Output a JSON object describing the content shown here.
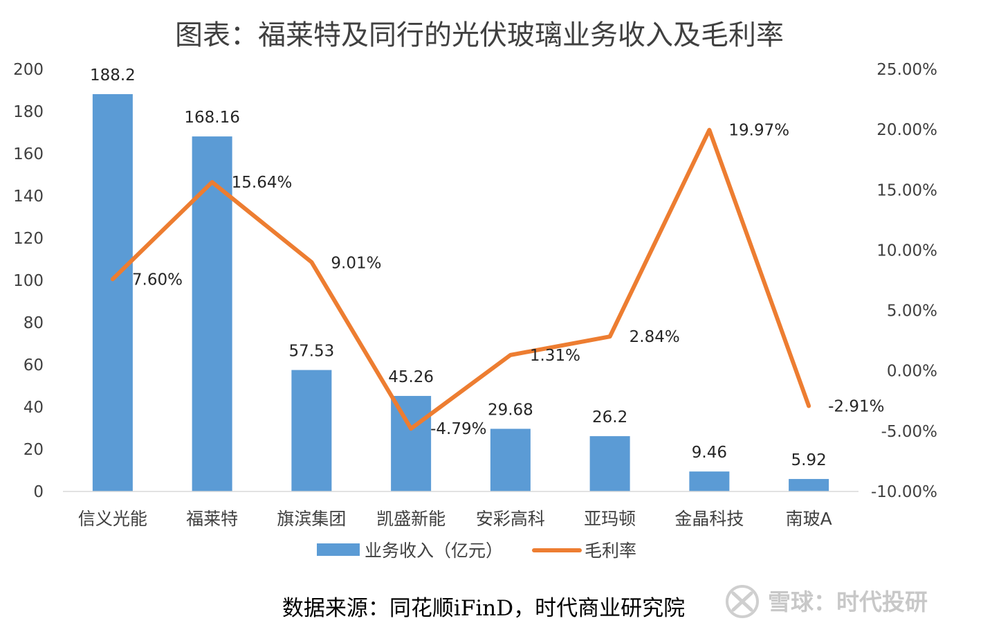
{
  "chart_data": {
    "type": "bar",
    "title": "图表：福莱特及同行的光伏玻璃业务收入及毛利率",
    "categories": [
      "信义光能",
      "福莱特",
      "旗滨集团",
      "凯盛新能",
      "安彩高科",
      "亚玛顿",
      "金晶科技",
      "南玻A"
    ],
    "series": [
      {
        "name": "业务收入（亿元）",
        "type": "bar",
        "axis": "left",
        "color": "#5B9BD5",
        "values": [
          188.2,
          168.16,
          57.53,
          45.26,
          29.68,
          26.2,
          9.46,
          5.92
        ],
        "labels": [
          "188.2",
          "168.16",
          "57.53",
          "45.26",
          "29.68",
          "26.2",
          "9.46",
          "5.92"
        ]
      },
      {
        "name": "毛利率",
        "type": "line",
        "axis": "right",
        "color": "#ED7D31",
        "values": [
          7.6,
          15.64,
          9.01,
          -4.79,
          1.31,
          2.84,
          19.97,
          -2.91
        ],
        "labels": [
          "7.60%",
          "15.64%",
          "9.01%",
          "-4.79%",
          "1.31%",
          "2.84%",
          "19.97%",
          "-2.91%"
        ]
      }
    ],
    "y_left": {
      "range": [
        0,
        200
      ],
      "ticks": [
        0,
        20,
        40,
        60,
        80,
        100,
        120,
        140,
        160,
        180,
        200
      ],
      "tick_labels": [
        "0",
        "20",
        "40",
        "60",
        "80",
        "100",
        "120",
        "140",
        "160",
        "180",
        "200"
      ]
    },
    "y_right": {
      "range": [
        -10,
        25
      ],
      "ticks": [
        -10,
        -5,
        0,
        5,
        10,
        15,
        20,
        25
      ],
      "tick_labels": [
        "-10.00%",
        "-5.00%",
        "0.00%",
        "5.00%",
        "10.00%",
        "15.00%",
        "20.00%",
        "25.00%"
      ]
    },
    "grid": false,
    "legend_position": "bottom",
    "source": "数据来源：同花顺iFinD，时代商业研究院"
  },
  "watermark": {
    "text": "雪球：时代投研"
  }
}
